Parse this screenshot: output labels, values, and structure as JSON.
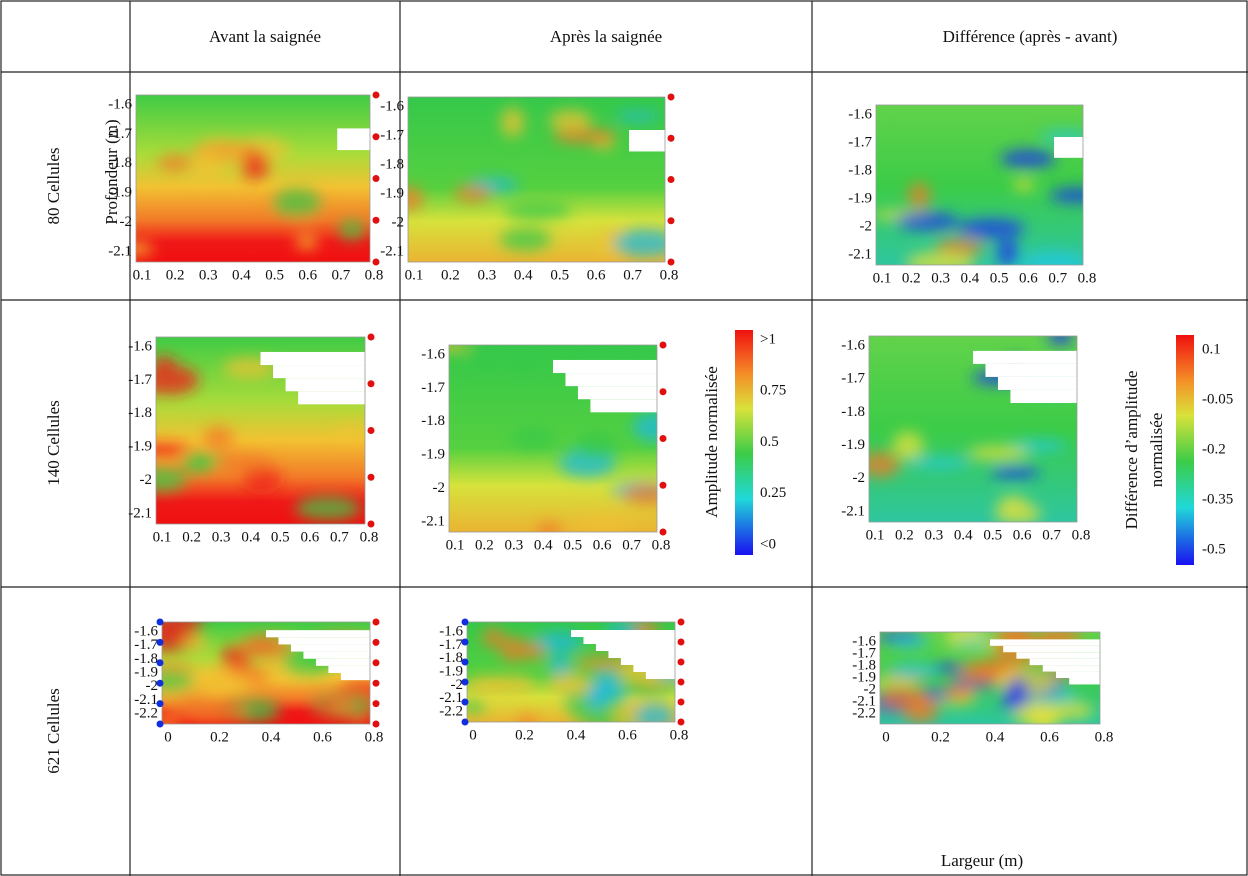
{
  "header": {
    "columns": [
      "Avant la saignée",
      "Après la saignée",
      "Différence (après - avant)"
    ]
  },
  "rows": [
    {
      "label": "80 Cellules",
      "yticks": [
        "-1.6",
        "-1.7",
        "-1.8",
        "-1.9",
        "-2",
        "-2.1"
      ],
      "xticks": [
        "0.1",
        "0.2",
        "0.3",
        "0.4",
        "0.5",
        "0.6",
        "0.7",
        "0.8"
      ]
    },
    {
      "label": "140 Cellules",
      "yticks": [
        "-1.6",
        "-1.7",
        "-1.8",
        "-1.9",
        "-2",
        "-2.1"
      ],
      "xticks": [
        "0.1",
        "0.2",
        "0.3",
        "0.4",
        "0.5",
        "0.6",
        "0.7",
        "0.8"
      ]
    },
    {
      "label": "621 Cellules",
      "yticks": [
        "-1.6",
        "-1.7",
        "-1.8",
        "-1.9",
        "-2",
        "-2.1",
        "-2.2"
      ],
      "xticks": [
        "0",
        "0.2",
        "0.4",
        "0.6",
        "0.8"
      ]
    }
  ],
  "y_label": "Profondeur (m)",
  "x_label": "Largeur (m)",
  "colorbars": [
    {
      "title_lines": [
        "Amplitude normalisée"
      ],
      "ticks": [
        ">1",
        "0.75",
        "0.5",
        "0.25",
        "<0"
      ]
    },
    {
      "title_lines": [
        "Différence d’amplitude",
        "normalisée"
      ],
      "ticks": [
        "0.1",
        "-0.05",
        "-0.2",
        "-0.35",
        "-0.5"
      ]
    }
  ]
}
